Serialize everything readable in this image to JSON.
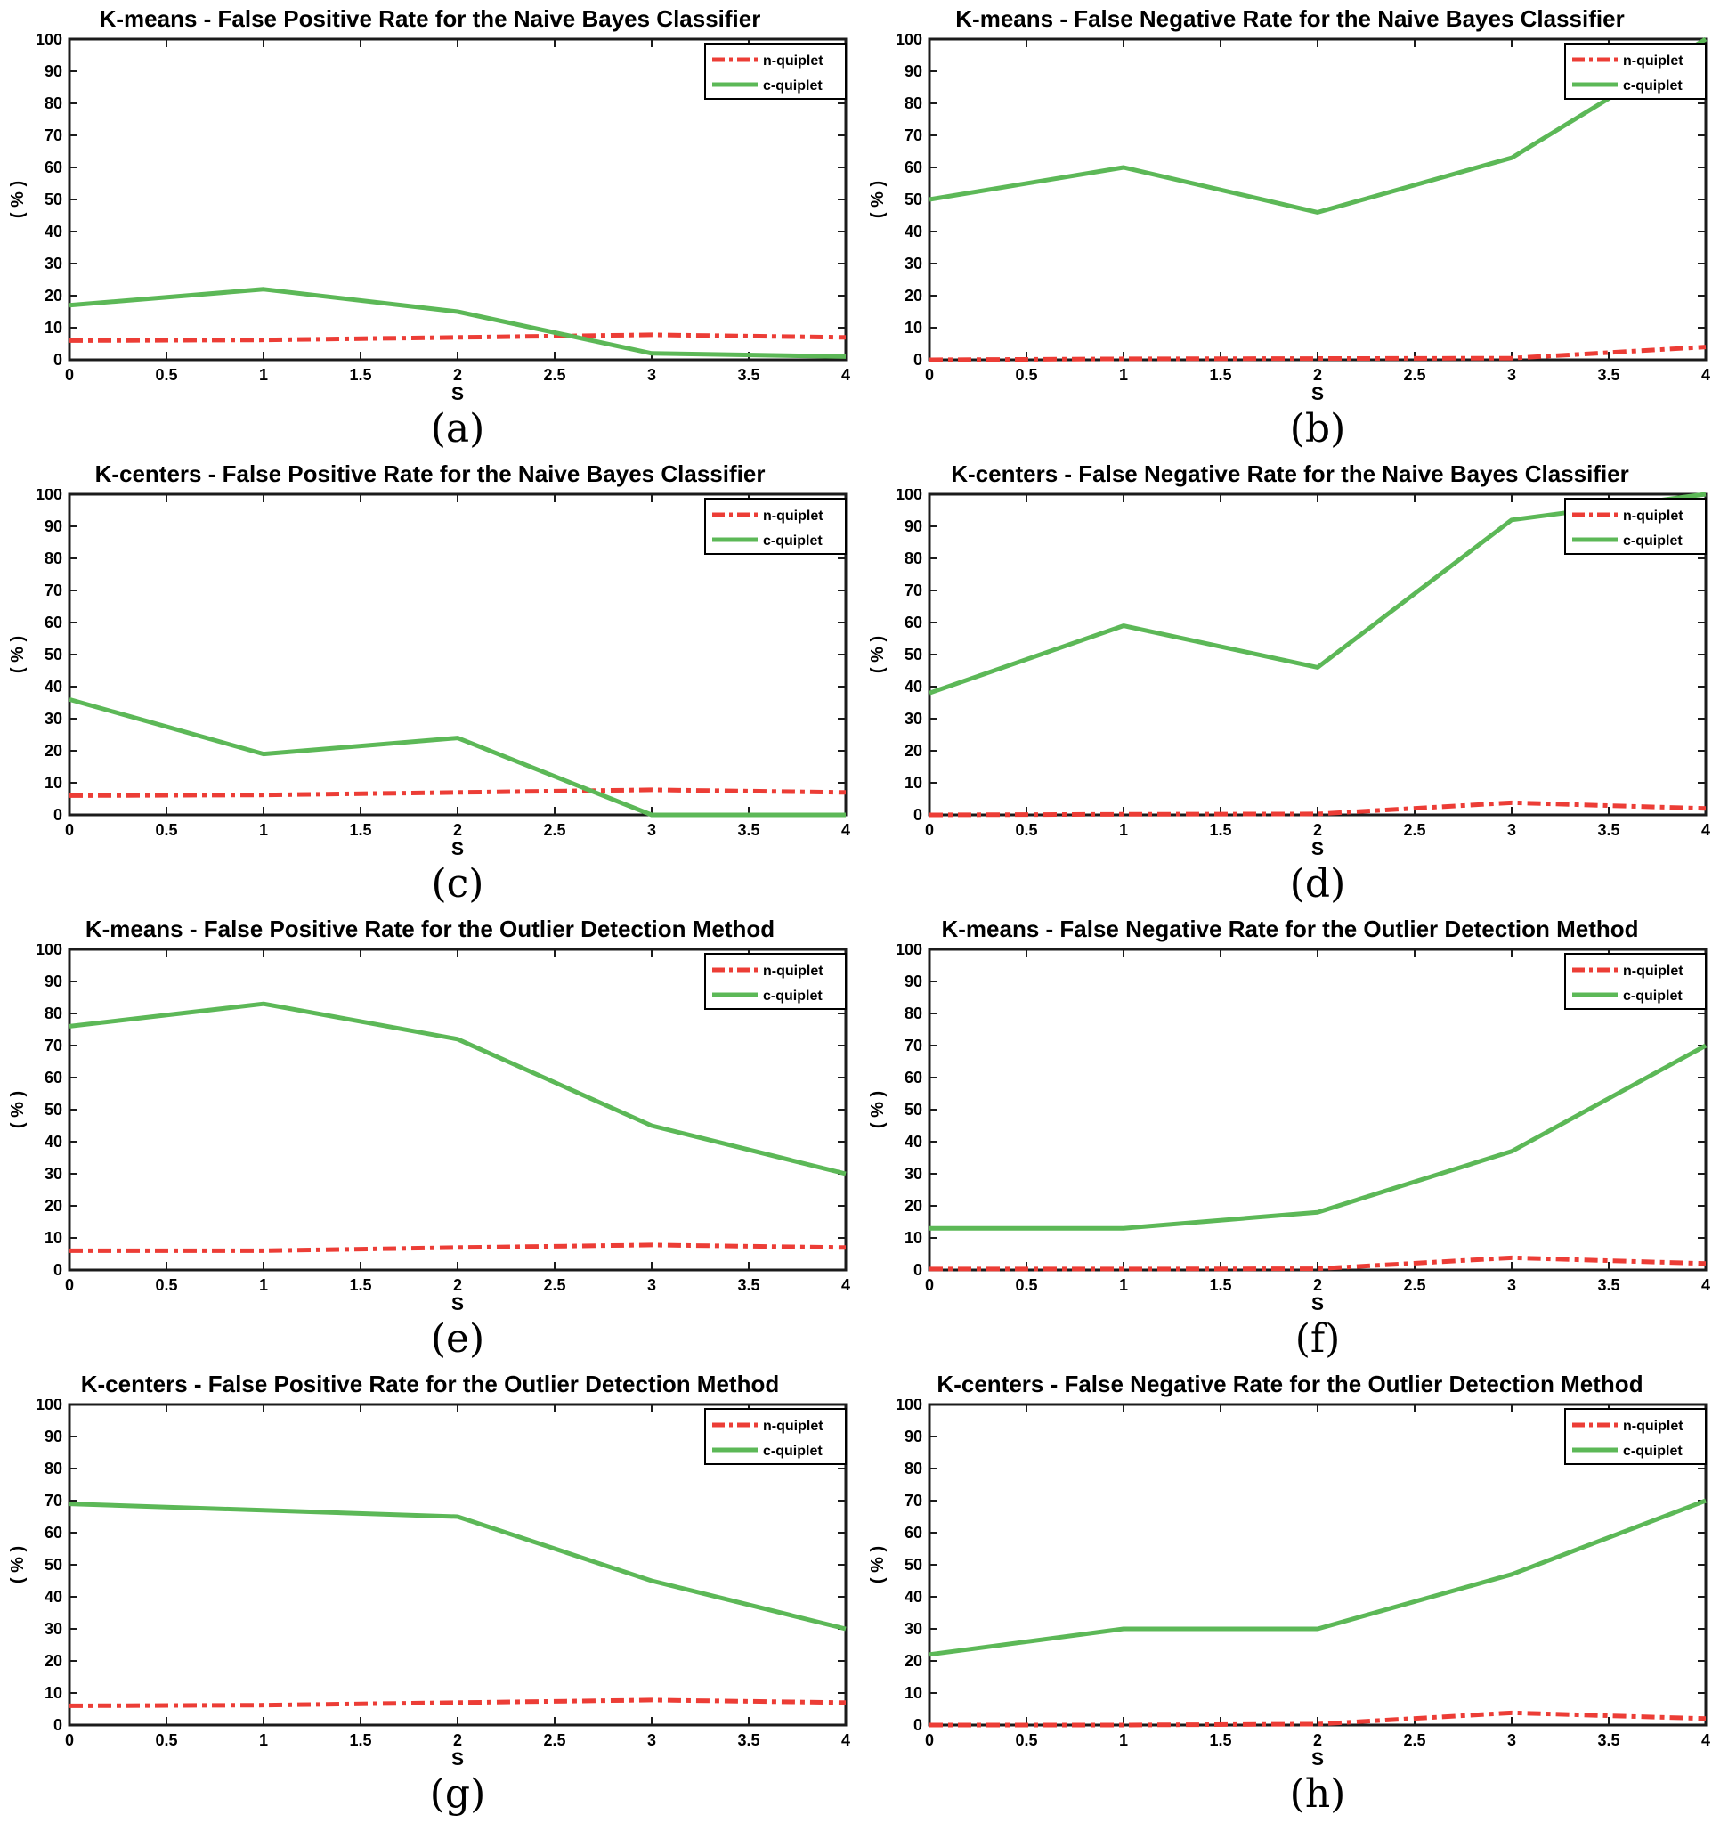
{
  "page": {
    "background": "#ffffff"
  },
  "axes": {
    "x_label": "S",
    "y_label": "( % )",
    "x_range": [
      0,
      4
    ],
    "y_range": [
      0,
      100
    ],
    "x_ticks": [
      0,
      0.5,
      1,
      1.5,
      2,
      2.5,
      3,
      3.5,
      4
    ],
    "x_tick_labels": [
      "0",
      "0.5",
      "1",
      "1.5",
      "2",
      "2.5",
      "3",
      "3.5",
      "4"
    ],
    "y_ticks": [
      0,
      10,
      20,
      30,
      40,
      50,
      60,
      70,
      80,
      90,
      100
    ],
    "y_tick_labels": [
      "0",
      "10",
      "20",
      "30",
      "40",
      "50",
      "60",
      "70",
      "80",
      "90",
      "100"
    ],
    "grid": "off"
  },
  "legend": {
    "position": "top-right",
    "entries": [
      {
        "label": "n-quiplet",
        "color": "#ec3d36",
        "line_style": "dash-dot"
      },
      {
        "label": "c-quiplet",
        "color": "#5cb857",
        "line_style": "solid"
      }
    ]
  },
  "colors": {
    "n_quiplet": "#ec3d36",
    "c_quiplet": "#5cb857",
    "axis": "#1b1b1b",
    "text": "#000000",
    "plot_background": "#ffffff"
  },
  "chart_data": [
    {
      "type": "line",
      "title": "K-means - False Positive Rate for the Naive Bayes Classifier",
      "caption": "(a)",
      "xlabel": "S",
      "ylabel": "( % )",
      "xlim": [
        0,
        4
      ],
      "ylim": [
        0,
        100
      ],
      "x": [
        0,
        1,
        2,
        3,
        4
      ],
      "series": [
        {
          "name": "n-quiplet",
          "values": [
            6,
            6.2,
            7,
            7.8,
            7
          ]
        },
        {
          "name": "c-quiplet",
          "values": [
            17,
            22,
            15,
            2,
            1
          ]
        }
      ]
    },
    {
      "type": "line",
      "title": "K-means - False Negative Rate for the Naive Bayes Classifier",
      "caption": "(b)",
      "xlabel": "S",
      "ylabel": "( % )",
      "xlim": [
        0,
        4
      ],
      "ylim": [
        0,
        100
      ],
      "x": [
        0,
        1,
        2,
        3,
        4
      ],
      "series": [
        {
          "name": "n-quiplet",
          "values": [
            0,
            0.3,
            0.4,
            0.5,
            4
          ]
        },
        {
          "name": "c-quiplet",
          "values": [
            50,
            60,
            46,
            63,
            100
          ]
        }
      ]
    },
    {
      "type": "line",
      "title": "K-centers - False Positive Rate for the Naive Bayes Classifier",
      "caption": "(c)",
      "xlabel": "S",
      "ylabel": "( % )",
      "xlim": [
        0,
        4
      ],
      "ylim": [
        0,
        100
      ],
      "x": [
        0,
        1,
        2,
        3,
        4
      ],
      "series": [
        {
          "name": "n-quiplet",
          "values": [
            6,
            6.2,
            7,
            7.8,
            7
          ]
        },
        {
          "name": "c-quiplet",
          "values": [
            36,
            19,
            24,
            0,
            0
          ]
        }
      ]
    },
    {
      "type": "line",
      "title": "K-centers - False Negative Rate for the Naive Bayes Classifier",
      "caption": "(d)",
      "xlabel": "S",
      "ylabel": "( % )",
      "xlim": [
        0,
        4
      ],
      "ylim": [
        0,
        100
      ],
      "x": [
        0,
        1,
        2,
        3,
        4
      ],
      "series": [
        {
          "name": "n-quiplet",
          "values": [
            0,
            0.2,
            0.3,
            3.8,
            2
          ]
        },
        {
          "name": "c-quiplet",
          "values": [
            38,
            59,
            46,
            92,
            100
          ]
        }
      ]
    },
    {
      "type": "line",
      "title": "K-means - False Positive Rate for the Outlier Detection Method",
      "caption": "(e)",
      "xlabel": "S",
      "ylabel": "( % )",
      "xlim": [
        0,
        4
      ],
      "ylim": [
        0,
        100
      ],
      "x": [
        0,
        1,
        2,
        3,
        4
      ],
      "series": [
        {
          "name": "n-quiplet",
          "values": [
            6,
            6,
            7,
            7.8,
            7
          ]
        },
        {
          "name": "c-quiplet",
          "values": [
            76,
            83,
            72,
            45,
            30
          ]
        }
      ]
    },
    {
      "type": "line",
      "title": "K-means - False Negative Rate for the Outlier Detection Method",
      "caption": "(f)",
      "xlabel": "S",
      "ylabel": "( % )",
      "xlim": [
        0,
        4
      ],
      "ylim": [
        0,
        100
      ],
      "x": [
        0,
        1,
        2,
        3,
        4
      ],
      "series": [
        {
          "name": "n-quiplet",
          "values": [
            0.3,
            0.3,
            0.4,
            3.8,
            2
          ]
        },
        {
          "name": "c-quiplet",
          "values": [
            13,
            13,
            18,
            37,
            70
          ]
        }
      ]
    },
    {
      "type": "line",
      "title": "K-centers - False Positive Rate for the Outlier Detection Method",
      "caption": "(g)",
      "xlabel": "S",
      "ylabel": "( % )",
      "xlim": [
        0,
        4
      ],
      "ylim": [
        0,
        100
      ],
      "x": [
        0,
        1,
        2,
        3,
        4
      ],
      "series": [
        {
          "name": "n-quiplet",
          "values": [
            6,
            6.2,
            7,
            7.8,
            7
          ]
        },
        {
          "name": "c-quiplet",
          "values": [
            69,
            67,
            65,
            45,
            30
          ]
        }
      ]
    },
    {
      "type": "line",
      "title": "K-centers - False Negative Rate for the Outlier Detection Method",
      "caption": "(h)",
      "xlabel": "S",
      "ylabel": "( % )",
      "xlim": [
        0,
        4
      ],
      "ylim": [
        0,
        100
      ],
      "x": [
        0,
        1,
        2,
        3,
        4
      ],
      "series": [
        {
          "name": "n-quiplet",
          "values": [
            0,
            0,
            0.3,
            3.8,
            2
          ]
        },
        {
          "name": "c-quiplet",
          "values": [
            22,
            30,
            30,
            47,
            70
          ]
        }
      ]
    }
  ]
}
